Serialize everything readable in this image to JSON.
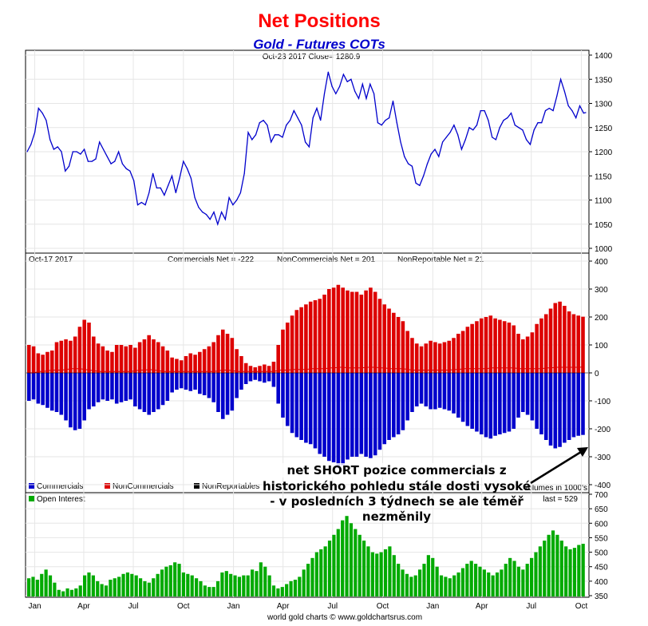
{
  "title": "Net Positions",
  "subtitle": "Gold - Futures COTs",
  "footer": "world gold charts © www.goldchartsrus.com",
  "colors": {
    "title": "#ff0000",
    "subtitle": "#0000cc",
    "price_line": "#0000cc",
    "commercials": "#0000cc",
    "noncommercials": "#dd0000",
    "nonreportables": "#000000",
    "open_interest": "#00aa00"
  },
  "x_ticks": [
    "Jan",
    "Apr",
    "Jul",
    "Oct",
    "Jan",
    "Apr",
    "Jul",
    "Oct",
    "Jan",
    "Apr",
    "Jul",
    "Oct"
  ],
  "price_panel": {
    "header": "Oct-23  2017   Close= 1280.9"
  },
  "cot_panel": {
    "date": "Oct-17  2017",
    "commercials_net": "Commercials Net = -222",
    "noncommercials_net": "NonCommercials Net = 201",
    "nonreportable_net": "NonReportable Net = 21",
    "legend": [
      "Commercials",
      "NonCommercials",
      "NonReportables"
    ],
    "volumes_note": "volumes in 1000's"
  },
  "oi_panel": {
    "legend": "Open Interest",
    "last": "last = 529"
  },
  "annotation": {
    "line1": "net SHORT pozice commercials z",
    "line2": "historického pohledu stále dosti vysoké",
    "line3": "- v posledních 3 týdnech se ale téměř",
    "line4": "nezměnily"
  },
  "chart_data": [
    {
      "type": "line",
      "name": "Gold price",
      "ylim": [
        1000,
        1400
      ],
      "y_ticks": [
        "1000",
        "1050",
        "1100",
        "1150",
        "1200",
        "1250",
        "1300",
        "1350",
        "1400"
      ],
      "x_range": [
        "2015-01-01",
        "2017-10-23"
      ],
      "points": [
        [
          "2015-01-01",
          1200
        ],
        [
          "2015-01-08",
          1215
        ],
        [
          "2015-01-15",
          1240
        ],
        [
          "2015-01-22",
          1290
        ],
        [
          "2015-01-29",
          1280
        ],
        [
          "2015-02-05",
          1265
        ],
        [
          "2015-02-12",
          1225
        ],
        [
          "2015-02-19",
          1205
        ],
        [
          "2015-02-26",
          1210
        ],
        [
          "2015-03-05",
          1200
        ],
        [
          "2015-03-12",
          1160
        ],
        [
          "2015-03-19",
          1170
        ],
        [
          "2015-03-26",
          1200
        ],
        [
          "2015-04-02",
          1200
        ],
        [
          "2015-04-09",
          1195
        ],
        [
          "2015-04-16",
          1205
        ],
        [
          "2015-04-23",
          1180
        ],
        [
          "2015-04-30",
          1180
        ],
        [
          "2015-05-07",
          1185
        ],
        [
          "2015-05-14",
          1220
        ],
        [
          "2015-05-21",
          1205
        ],
        [
          "2015-05-28",
          1190
        ],
        [
          "2015-06-04",
          1175
        ],
        [
          "2015-06-11",
          1180
        ],
        [
          "2015-06-18",
          1200
        ],
        [
          "2015-06-25",
          1175
        ],
        [
          "2015-07-02",
          1165
        ],
        [
          "2015-07-09",
          1160
        ],
        [
          "2015-07-16",
          1140
        ],
        [
          "2015-07-23",
          1090
        ],
        [
          "2015-07-30",
          1095
        ],
        [
          "2015-08-06",
          1090
        ],
        [
          "2015-08-13",
          1115
        ],
        [
          "2015-08-20",
          1155
        ],
        [
          "2015-08-27",
          1125
        ],
        [
          "2015-09-03",
          1125
        ],
        [
          "2015-09-10",
          1110
        ],
        [
          "2015-09-17",
          1130
        ],
        [
          "2015-09-24",
          1150
        ],
        [
          "2015-10-01",
          1115
        ],
        [
          "2015-10-08",
          1145
        ],
        [
          "2015-10-15",
          1180
        ],
        [
          "2015-10-22",
          1165
        ],
        [
          "2015-10-29",
          1145
        ],
        [
          "2015-11-05",
          1105
        ],
        [
          "2015-11-12",
          1085
        ],
        [
          "2015-11-19",
          1075
        ],
        [
          "2015-11-26",
          1070
        ],
        [
          "2015-12-03",
          1060
        ],
        [
          "2015-12-10",
          1075
        ],
        [
          "2015-12-17",
          1050
        ],
        [
          "2015-12-24",
          1075
        ],
        [
          "2015-12-31",
          1060
        ],
        [
          "2016-01-07",
          1105
        ],
        [
          "2016-01-14",
          1090
        ],
        [
          "2016-01-21",
          1100
        ],
        [
          "2016-01-28",
          1115
        ],
        [
          "2016-02-04",
          1155
        ],
        [
          "2016-02-11",
          1240
        ],
        [
          "2016-02-18",
          1225
        ],
        [
          "2016-02-25",
          1235
        ],
        [
          "2016-03-03",
          1260
        ],
        [
          "2016-03-10",
          1265
        ],
        [
          "2016-03-17",
          1255
        ],
        [
          "2016-03-24",
          1220
        ],
        [
          "2016-03-31",
          1235
        ],
        [
          "2016-04-07",
          1235
        ],
        [
          "2016-04-14",
          1230
        ],
        [
          "2016-04-21",
          1255
        ],
        [
          "2016-04-28",
          1265
        ],
        [
          "2016-05-05",
          1285
        ],
        [
          "2016-05-12",
          1270
        ],
        [
          "2016-05-19",
          1255
        ],
        [
          "2016-05-26",
          1220
        ],
        [
          "2016-06-02",
          1210
        ],
        [
          "2016-06-09",
          1270
        ],
        [
          "2016-06-16",
          1290
        ],
        [
          "2016-06-23",
          1265
        ],
        [
          "2016-06-30",
          1320
        ],
        [
          "2016-07-07",
          1365
        ],
        [
          "2016-07-14",
          1335
        ],
        [
          "2016-07-21",
          1320
        ],
        [
          "2016-07-28",
          1335
        ],
        [
          "2016-08-04",
          1360
        ],
        [
          "2016-08-11",
          1345
        ],
        [
          "2016-08-18",
          1350
        ],
        [
          "2016-08-25",
          1325
        ],
        [
          "2016-09-01",
          1310
        ],
        [
          "2016-09-08",
          1340
        ],
        [
          "2016-09-15",
          1310
        ],
        [
          "2016-09-22",
          1340
        ],
        [
          "2016-09-29",
          1320
        ],
        [
          "2016-10-06",
          1260
        ],
        [
          "2016-10-13",
          1255
        ],
        [
          "2016-10-20",
          1265
        ],
        [
          "2016-10-27",
          1270
        ],
        [
          "2016-11-03",
          1305
        ],
        [
          "2016-11-10",
          1260
        ],
        [
          "2016-11-17",
          1220
        ],
        [
          "2016-11-24",
          1190
        ],
        [
          "2016-12-01",
          1175
        ],
        [
          "2016-12-08",
          1170
        ],
        [
          "2016-12-15",
          1135
        ],
        [
          "2016-12-22",
          1130
        ],
        [
          "2016-12-29",
          1150
        ],
        [
          "2017-01-05",
          1175
        ],
        [
          "2017-01-12",
          1195
        ],
        [
          "2017-01-19",
          1205
        ],
        [
          "2017-01-26",
          1190
        ],
        [
          "2017-02-02",
          1220
        ],
        [
          "2017-02-09",
          1230
        ],
        [
          "2017-02-16",
          1240
        ],
        [
          "2017-02-23",
          1255
        ],
        [
          "2017-03-02",
          1235
        ],
        [
          "2017-03-09",
          1205
        ],
        [
          "2017-03-16",
          1225
        ],
        [
          "2017-03-23",
          1250
        ],
        [
          "2017-03-30",
          1245
        ],
        [
          "2017-04-06",
          1255
        ],
        [
          "2017-04-13",
          1285
        ],
        [
          "2017-04-20",
          1285
        ],
        [
          "2017-04-27",
          1265
        ],
        [
          "2017-05-04",
          1230
        ],
        [
          "2017-05-11",
          1225
        ],
        [
          "2017-05-18",
          1250
        ],
        [
          "2017-05-25",
          1265
        ],
        [
          "2017-06-01",
          1270
        ],
        [
          "2017-06-08",
          1280
        ],
        [
          "2017-06-15",
          1255
        ],
        [
          "2017-06-22",
          1250
        ],
        [
          "2017-06-29",
          1245
        ],
        [
          "2017-07-06",
          1225
        ],
        [
          "2017-07-13",
          1215
        ],
        [
          "2017-07-20",
          1245
        ],
        [
          "2017-07-27",
          1260
        ],
        [
          "2017-08-03",
          1260
        ],
        [
          "2017-08-10",
          1285
        ],
        [
          "2017-08-17",
          1290
        ],
        [
          "2017-08-24",
          1285
        ],
        [
          "2017-08-31",
          1315
        ],
        [
          "2017-09-07",
          1350
        ],
        [
          "2017-09-14",
          1325
        ],
        [
          "2017-09-21",
          1295
        ],
        [
          "2017-09-28",
          1285
        ],
        [
          "2017-10-05",
          1270
        ],
        [
          "2017-10-12",
          1295
        ],
        [
          "2017-10-19",
          1280
        ],
        [
          "2017-10-23",
          1281
        ]
      ]
    },
    {
      "type": "bar",
      "name": "COT net positions (1000's)",
      "ylim": [
        -400,
        400
      ],
      "y_ticks": [
        "-400",
        "-300",
        "-200",
        "-100",
        "0",
        "100",
        "200",
        "300",
        "400"
      ],
      "x_range": [
        "2015-01-01",
        "2017-10-23"
      ],
      "series": [
        {
          "name": "Commercials",
          "values": [
            -100,
            -95,
            -110,
            -115,
            -125,
            -135,
            -140,
            -150,
            -170,
            -195,
            -205,
            -200,
            -170,
            -130,
            -120,
            -105,
            -95,
            -100,
            -95,
            -110,
            -105,
            -100,
            -95,
            -120,
            -130,
            -140,
            -150,
            -140,
            -130,
            -115,
            -100,
            -70,
            -60,
            -55,
            -60,
            -65,
            -60,
            -75,
            -80,
            -90,
            -105,
            -140,
            -165,
            -150,
            -135,
            -90,
            -60,
            -40,
            -30,
            -25,
            -30,
            -35,
            -30,
            -50,
            -110,
            -160,
            -190,
            -215,
            -230,
            -240,
            -250,
            -255,
            -270,
            -290,
            -300,
            -315,
            -320,
            -340,
            -330,
            -310,
            -300,
            -300,
            -290,
            -300,
            -305,
            -295,
            -275,
            -255,
            -240,
            -230,
            -220,
            -205,
            -170,
            -140,
            -120,
            -110,
            -120,
            -130,
            -130,
            -125,
            -130,
            -135,
            -145,
            -160,
            -175,
            -190,
            -200,
            -210,
            -220,
            -230,
            -235,
            -225,
            -220,
            -215,
            -210,
            -200,
            -160,
            -140,
            -150,
            -170,
            -200,
            -220,
            -240,
            -260,
            -270,
            -265,
            -250,
            -240,
            -230,
            -225,
            -222
          ]
        },
        {
          "name": "NonCommercials",
          "values": [
            100,
            95,
            70,
            65,
            75,
            80,
            110,
            115,
            120,
            115,
            130,
            165,
            190,
            180,
            130,
            105,
            95,
            80,
            75,
            100,
            100,
            95,
            100,
            90,
            110,
            120,
            135,
            120,
            110,
            95,
            80,
            55,
            50,
            45,
            60,
            70,
            65,
            75,
            85,
            95,
            110,
            135,
            155,
            140,
            125,
            85,
            60,
            35,
            25,
            20,
            25,
            30,
            25,
            40,
            100,
            155,
            180,
            205,
            225,
            235,
            245,
            255,
            260,
            265,
            280,
            300,
            305,
            315,
            305,
            295,
            290,
            290,
            280,
            295,
            305,
            290,
            265,
            245,
            230,
            215,
            200,
            185,
            150,
            125,
            105,
            95,
            105,
            115,
            110,
            105,
            110,
            115,
            125,
            140,
            150,
            165,
            175,
            185,
            195,
            200,
            205,
            195,
            190,
            185,
            180,
            170,
            140,
            120,
            130,
            145,
            175,
            195,
            210,
            230,
            250,
            255,
            240,
            220,
            210,
            205,
            201
          ]
        },
        {
          "name": "NonReportables",
          "values": [
            0,
            0,
            5,
            5,
            8,
            10,
            10,
            10,
            12,
            15,
            15,
            15,
            12,
            10,
            8,
            5,
            5,
            5,
            5,
            5,
            5,
            5,
            5,
            8,
            10,
            10,
            12,
            10,
            8,
            5,
            5,
            5,
            5,
            5,
            5,
            5,
            5,
            5,
            5,
            5,
            5,
            8,
            10,
            10,
            8,
            5,
            5,
            5,
            5,
            5,
            5,
            5,
            5,
            5,
            10,
            10,
            10,
            12,
            12,
            12,
            12,
            15,
            15,
            15,
            15,
            18,
            18,
            20,
            20,
            18,
            18,
            18,
            18,
            20,
            20,
            20,
            18,
            18,
            15,
            15,
            15,
            15,
            12,
            10,
            10,
            10,
            10,
            10,
            10,
            10,
            10,
            10,
            12,
            12,
            15,
            15,
            15,
            15,
            15,
            15,
            18,
            18,
            18,
            18,
            18,
            18,
            15,
            15,
            15,
            15,
            15,
            15,
            18,
            18,
            20,
            20,
            20,
            20,
            20,
            20,
            21
          ]
        }
      ],
      "latest": {
        "date": "2017-10-17",
        "Commercials": -222,
        "NonCommercials": 201,
        "NonReportables": 21
      }
    },
    {
      "type": "bar",
      "name": "Open Interest (1000's)",
      "ylim": [
        350,
        700
      ],
      "y_ticks": [
        "350",
        "400",
        "450",
        "500",
        "550",
        "600",
        "650",
        "700"
      ],
      "x_range": [
        "2015-01-01",
        "2017-10-23"
      ],
      "values": [
        410,
        415,
        405,
        425,
        440,
        420,
        395,
        370,
        365,
        375,
        370,
        375,
        385,
        420,
        430,
        420,
        400,
        390,
        385,
        405,
        410,
        415,
        425,
        430,
        425,
        420,
        410,
        400,
        395,
        410,
        425,
        440,
        450,
        455,
        465,
        460,
        430,
        425,
        420,
        410,
        400,
        385,
        380,
        380,
        400,
        430,
        435,
        425,
        420,
        415,
        420,
        420,
        440,
        435,
        465,
        450,
        420,
        385,
        375,
        380,
        390,
        400,
        405,
        415,
        440,
        460,
        480,
        500,
        510,
        520,
        540,
        560,
        580,
        610,
        625,
        600,
        580,
        560,
        540,
        520,
        500,
        495,
        500,
        510,
        520,
        490,
        460,
        440,
        425,
        415,
        420,
        440,
        460,
        490,
        480,
        450,
        420,
        415,
        410,
        420,
        430,
        445,
        460,
        470,
        460,
        450,
        440,
        430,
        420,
        430,
        440,
        460,
        480,
        470,
        450,
        440,
        460,
        480,
        500,
        520,
        540,
        560,
        575,
        560,
        540,
        520,
        510,
        515,
        525,
        529
      ]
    }
  ]
}
